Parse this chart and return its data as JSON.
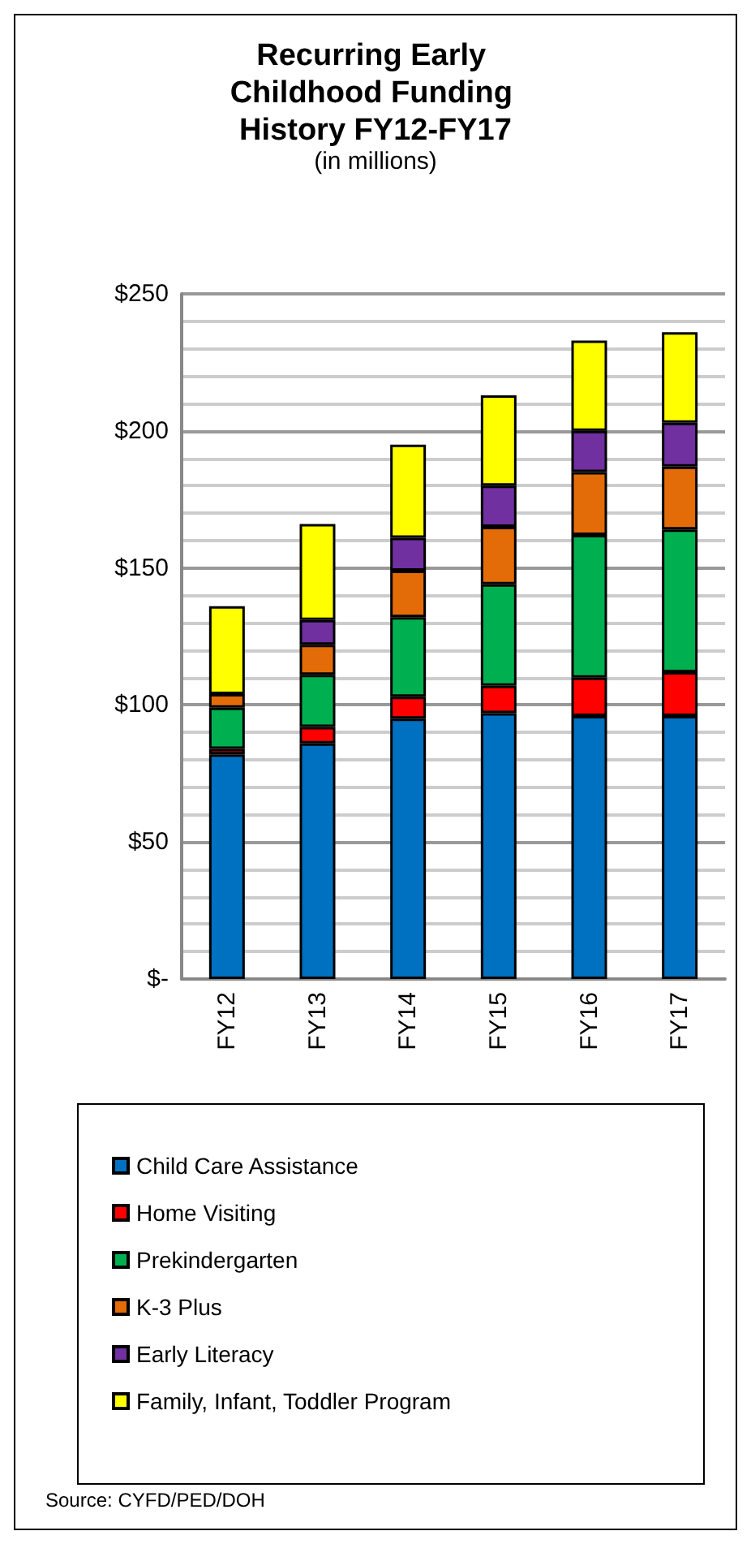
{
  "chart_data": {
    "type": "bar",
    "stacked": true,
    "title": "Recurring Early Childhood Funding History FY12-FY17",
    "subtitle": "(in millions)",
    "categories": [
      "FY12",
      "FY13",
      "FY14",
      "FY15",
      "FY16",
      "FY17"
    ],
    "series": [
      {
        "name": "Child Care Assistance",
        "color": "#0070c0",
        "values": [
          82,
          86,
          95,
          97,
          96,
          96
        ]
      },
      {
        "name": "Home Visiting",
        "color": "#ff0000",
        "values": [
          2,
          6,
          8,
          10,
          14,
          16
        ]
      },
      {
        "name": "Prekindergarten",
        "color": "#00b050",
        "values": [
          15,
          19,
          29,
          37,
          52,
          52
        ]
      },
      {
        "name": "K-3 Plus",
        "color": "#e36c09",
        "values": [
          5,
          11,
          17,
          21,
          23,
          23
        ]
      },
      {
        "name": "Early Literacy",
        "color": "#7030a0",
        "values": [
          null,
          9,
          12,
          15,
          15,
          16
        ]
      },
      {
        "name": "Family, Infant, Toddler Program",
        "color": "#ffff00",
        "values": [
          32,
          35,
          34,
          33,
          33,
          33
        ]
      }
    ],
    "ylim": [
      0,
      250
    ],
    "yticks": [
      {
        "value": 0,
        "label": "$-"
      },
      {
        "value": 50,
        "label": "$50"
      },
      {
        "value": 100,
        "label": "$100"
      },
      {
        "value": 150,
        "label": "$150"
      },
      {
        "value": 200,
        "label": "$200"
      },
      {
        "value": 250,
        "label": "$250"
      }
    ],
    "grid": "y",
    "legend": "bottom",
    "annotations": [
      "Source: CYFD/PED/DOH"
    ]
  }
}
